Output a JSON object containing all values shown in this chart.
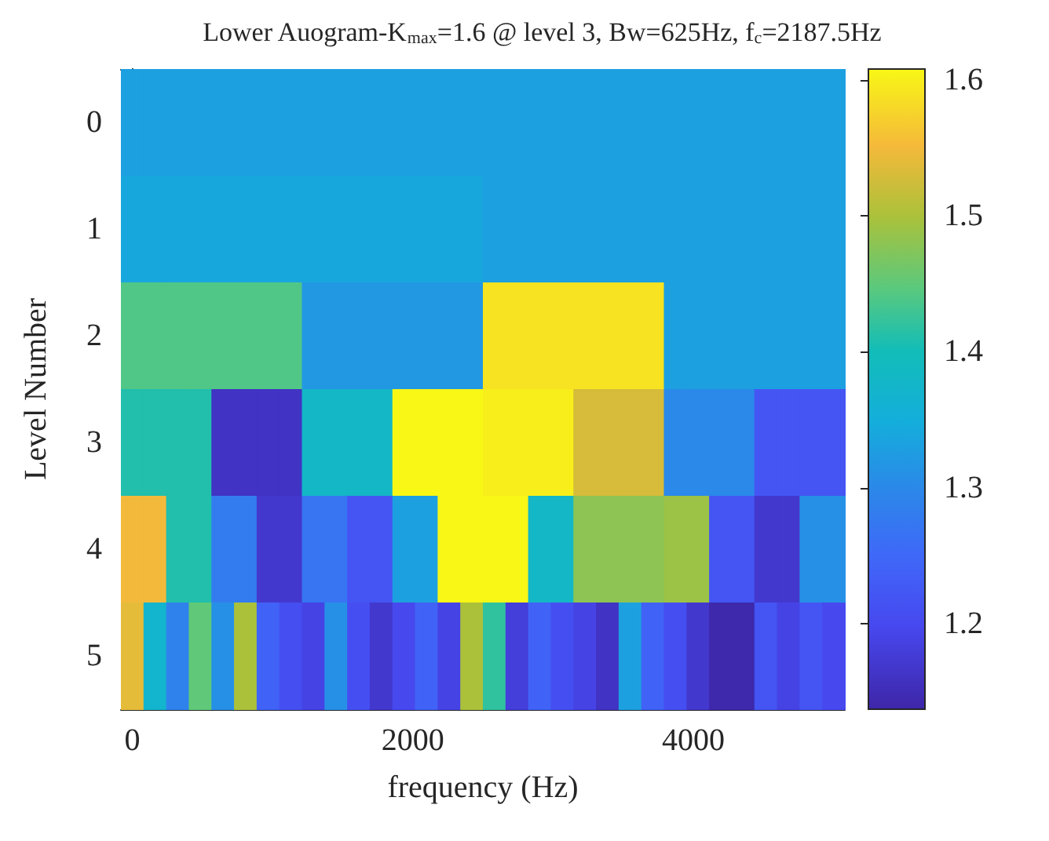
{
  "chart_data": {
    "type": "heatmap",
    "title": "Lower Auogram-K$_{max}$=1.6 @ level 3, Bw=625Hz, f$_{c}$=2187.5Hz",
    "xlabel": "frequency (Hz)",
    "ylabel": "Level Number",
    "x": [
      0,
      161.3,
      322.6,
      483.9,
      645.2,
      806.5,
      967.7,
      1129.0,
      1290.3,
      1451.6,
      1612.9,
      1774.2,
      1935.5,
      2096.8,
      2258.1,
      2419.4,
      2580.6,
      2741.9,
      2903.2,
      3064.5,
      3225.8,
      3387.1,
      3548.4,
      3709.7,
      3871.0,
      4032.3,
      4193.5,
      4354.8,
      4516.1,
      4677.4,
      4838.7,
      5000
    ],
    "xlim": [
      -80.6,
      5080.6
    ],
    "xticks": [
      0,
      2000,
      4000
    ],
    "y_categories": [
      "0",
      "1",
      "2",
      "3",
      "4",
      "5"
    ],
    "cells": [
      [
        1.33,
        1.33,
        1.33,
        1.33,
        1.33,
        1.33,
        1.33,
        1.33,
        1.33,
        1.33,
        1.33,
        1.33,
        1.33,
        1.33,
        1.33,
        1.33,
        1.33,
        1.33,
        1.33,
        1.33,
        1.33,
        1.33,
        1.33,
        1.33,
        1.33,
        1.33,
        1.33,
        1.33,
        1.33,
        1.33,
        1.33,
        1.33
      ],
      [
        1.34,
        1.34,
        1.34,
        1.34,
        1.34,
        1.34,
        1.34,
        1.34,
        1.34,
        1.34,
        1.34,
        1.34,
        1.34,
        1.34,
        1.34,
        1.34,
        1.33,
        1.33,
        1.33,
        1.33,
        1.33,
        1.33,
        1.33,
        1.33,
        1.33,
        1.33,
        1.33,
        1.33,
        1.33,
        1.33,
        1.33,
        1.33
      ],
      [
        1.44,
        1.44,
        1.44,
        1.44,
        1.44,
        1.44,
        1.44,
        1.44,
        1.32,
        1.32,
        1.32,
        1.32,
        1.32,
        1.32,
        1.32,
        1.32,
        1.59,
        1.59,
        1.59,
        1.59,
        1.59,
        1.59,
        1.59,
        1.59,
        1.33,
        1.33,
        1.33,
        1.33,
        1.33,
        1.33,
        1.33,
        1.33
      ],
      [
        1.41,
        1.41,
        1.41,
        1.41,
        1.16,
        1.16,
        1.16,
        1.16,
        1.38,
        1.38,
        1.38,
        1.38,
        1.61,
        1.61,
        1.61,
        1.61,
        1.6,
        1.6,
        1.6,
        1.6,
        1.53,
        1.53,
        1.53,
        1.53,
        1.3,
        1.3,
        1.3,
        1.3,
        1.22,
        1.22,
        1.22,
        1.22
      ],
      [
        1.55,
        1.55,
        1.41,
        1.41,
        1.28,
        1.28,
        1.17,
        1.17,
        1.27,
        1.27,
        1.22,
        1.22,
        1.33,
        1.33,
        1.61,
        1.61,
        1.61,
        1.61,
        1.38,
        1.38,
        1.48,
        1.48,
        1.48,
        1.48,
        1.49,
        1.49,
        1.22,
        1.22,
        1.17,
        1.17,
        1.31,
        1.31
      ],
      [
        1.54,
        1.37,
        1.29,
        1.45,
        1.31,
        1.5,
        1.24,
        1.21,
        1.19,
        1.31,
        1.21,
        1.17,
        1.2,
        1.24,
        1.19,
        1.5,
        1.42,
        1.18,
        1.24,
        1.21,
        1.19,
        1.16,
        1.33,
        1.24,
        1.21,
        1.17,
        1.14,
        1.14,
        1.22,
        1.19,
        1.22,
        1.2
      ]
    ],
    "clim": [
      1.137,
      1.608
    ],
    "cticks": [
      1.2,
      1.3,
      1.4,
      1.5,
      1.6
    ]
  }
}
